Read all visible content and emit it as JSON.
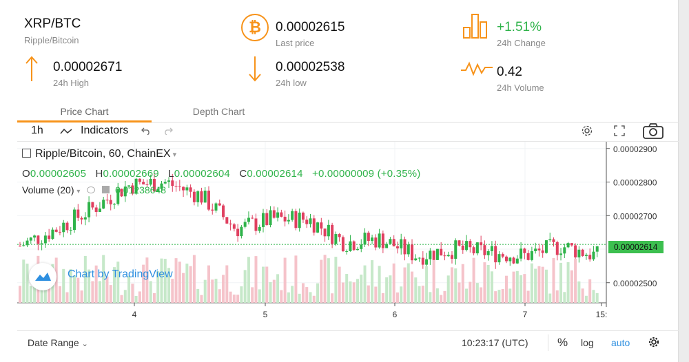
{
  "header": {
    "pair": "XRP/BTC",
    "pair_name": "Ripple/Bitcoin",
    "last_price": "0.00002615",
    "last_price_label": "Last price",
    "change": "+1.51%",
    "change_label": "24h Change",
    "high": "0.00002671",
    "high_label": "24h High",
    "low": "0.00002538",
    "low_label": "24h low",
    "volume": "0.42",
    "volume_label": "24h Volume",
    "bitcoin_glyph": "₿"
  },
  "tabs": [
    {
      "label": "Price Chart",
      "active": true
    },
    {
      "label": "Depth Chart",
      "active": false
    }
  ],
  "toolbar": {
    "interval": "1h",
    "indicators": "Indicators"
  },
  "legend": {
    "title": "Ripple/Bitcoin, 60, ChainEX",
    "o_key": "O",
    "o": "0.00002605",
    "h_key": "H",
    "h": "0.00002669",
    "l_key": "L",
    "l": "0.00002604",
    "c_key": "C",
    "c": "0.00002614",
    "change": "+0.00000009 (+0.35%)",
    "volume_label": "Volume (20)",
    "volume_value": "0.01238648"
  },
  "attribution": "Chart by TradingView",
  "colors": {
    "accent": "#f7931a",
    "up": "#2fb34a",
    "down": "#e04060",
    "vol_up": "#c6e8c9",
    "vol_down": "#f5c3ca",
    "link": "#2e8fe0"
  },
  "chart_data": {
    "type": "candlestick",
    "price_axis": [
      "0.00002900",
      "0.00002800",
      "0.00002700",
      "0.00002500"
    ],
    "current_price_tag": "0.00002614",
    "time_axis": [
      "4",
      "5",
      "6",
      "7",
      "15:"
    ],
    "ylim": [
      2.44e-05,
      2.92e-05
    ]
  },
  "bottom": {
    "date_range": "Date Range",
    "clock": "10:23:17 (UTC)",
    "percent": "%",
    "log": "log",
    "auto": "auto"
  }
}
